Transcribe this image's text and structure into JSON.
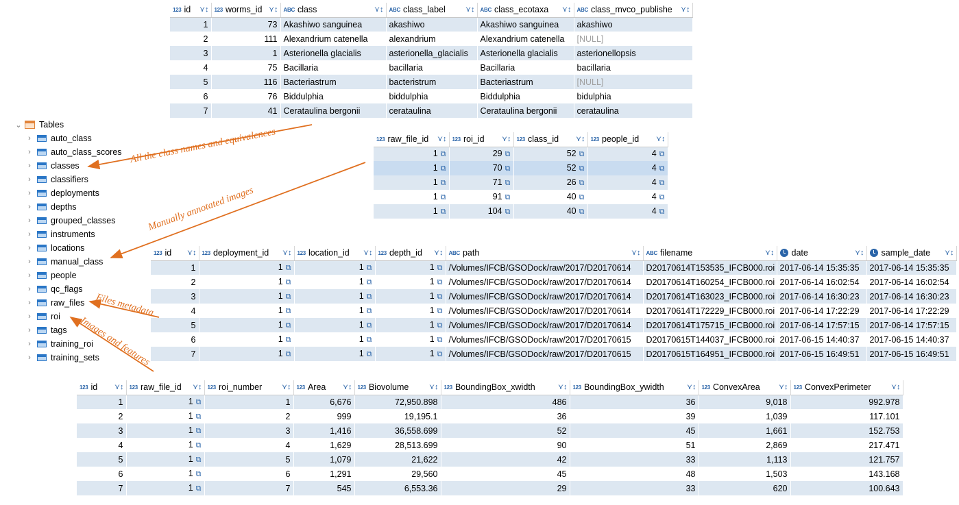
{
  "classes_table": {
    "columns": [
      {
        "type": "123",
        "name": "id"
      },
      {
        "type": "123",
        "name": "worms_id"
      },
      {
        "type": "ABC",
        "name": "class"
      },
      {
        "type": "ABC",
        "name": "class_label"
      },
      {
        "type": "ABC",
        "name": "class_ecotaxa"
      },
      {
        "type": "ABC",
        "name": "class_mvco_publishe"
      }
    ],
    "rows": [
      [
        "1",
        "73",
        "Akashiwo sanguinea",
        "akashiwo",
        "Akashiwo sanguinea",
        "akashiwo"
      ],
      [
        "2",
        "111",
        "Alexandrium catenella",
        "alexandrium",
        "Alexandrium catenella",
        "[NULL]"
      ],
      [
        "3",
        "1",
        "Asterionella glacialis",
        "asterionella_glacialis",
        "Asterionella glacialis",
        "asterionellopsis"
      ],
      [
        "4",
        "75",
        "Bacillaria",
        "bacillaria",
        "Bacillaria",
        "bacillaria"
      ],
      [
        "5",
        "116",
        "Bacteriastrum",
        "bacteristrum",
        "Bacteriastrum",
        "[NULL]"
      ],
      [
        "6",
        "76",
        "Biddulphia",
        "biddulphia",
        "Biddulphia",
        "bidulphia"
      ],
      [
        "7",
        "41",
        "Cerataulina bergonii",
        "cerataulina",
        "Cerataulina bergonii",
        "cerataulina"
      ]
    ]
  },
  "manual_table": {
    "columns": [
      {
        "type": "123",
        "name": "raw_file_id"
      },
      {
        "type": "123",
        "name": "roi_id"
      },
      {
        "type": "123",
        "name": "class_id"
      },
      {
        "type": "123",
        "name": "people_id"
      }
    ],
    "rows": [
      [
        "1",
        "29",
        "52",
        "4"
      ],
      [
        "1",
        "70",
        "52",
        "4"
      ],
      [
        "1",
        "71",
        "26",
        "4"
      ],
      [
        "1",
        "91",
        "40",
        "4"
      ],
      [
        "1",
        "104",
        "40",
        "4"
      ]
    ]
  },
  "raw_files_table": {
    "columns": [
      {
        "type": "123",
        "name": "id"
      },
      {
        "type": "123",
        "name": "deployment_id"
      },
      {
        "type": "123",
        "name": "location_id"
      },
      {
        "type": "123",
        "name": "depth_id"
      },
      {
        "type": "ABC",
        "name": "path"
      },
      {
        "type": "ABC",
        "name": "filename"
      },
      {
        "type": "clock",
        "name": "date"
      },
      {
        "type": "clock",
        "name": "sample_date"
      }
    ],
    "rows": [
      [
        "1",
        "1",
        "1",
        "1",
        "/Volumes/IFCB/GSODock/raw/2017/D20170614",
        "D20170614T153535_IFCB000.roi",
        "2017-06-14 15:35:35",
        "2017-06-14 15:35:35"
      ],
      [
        "2",
        "1",
        "1",
        "1",
        "/Volumes/IFCB/GSODock/raw/2017/D20170614",
        "D20170614T160254_IFCB000.roi",
        "2017-06-14 16:02:54",
        "2017-06-14 16:02:54"
      ],
      [
        "3",
        "1",
        "1",
        "1",
        "/Volumes/IFCB/GSODock/raw/2017/D20170614",
        "D20170614T163023_IFCB000.roi",
        "2017-06-14 16:30:23",
        "2017-06-14 16:30:23"
      ],
      [
        "4",
        "1",
        "1",
        "1",
        "/Volumes/IFCB/GSODock/raw/2017/D20170614",
        "D20170614T172229_IFCB000.roi",
        "2017-06-14 17:22:29",
        "2017-06-14 17:22:29"
      ],
      [
        "5",
        "1",
        "1",
        "1",
        "/Volumes/IFCB/GSODock/raw/2017/D20170614",
        "D20170614T175715_IFCB000.roi",
        "2017-06-14 17:57:15",
        "2017-06-14 17:57:15"
      ],
      [
        "6",
        "1",
        "1",
        "1",
        "/Volumes/IFCB/GSODock/raw/2017/D20170615",
        "D20170615T144037_IFCB000.roi",
        "2017-06-15 14:40:37",
        "2017-06-15 14:40:37"
      ],
      [
        "7",
        "1",
        "1",
        "1",
        "/Volumes/IFCB/GSODock/raw/2017/D20170615",
        "D20170615T164951_IFCB000.roi",
        "2017-06-15 16:49:51",
        "2017-06-15 16:49:51"
      ]
    ]
  },
  "roi_table": {
    "columns": [
      {
        "type": "123",
        "name": "id"
      },
      {
        "type": "123",
        "name": "raw_file_id"
      },
      {
        "type": "123",
        "name": "roi_number"
      },
      {
        "type": "123",
        "name": "Area"
      },
      {
        "type": "123",
        "name": "Biovolume"
      },
      {
        "type": "123",
        "name": "BoundingBox_xwidth"
      },
      {
        "type": "123",
        "name": "BoundingBox_ywidth"
      },
      {
        "type": "123",
        "name": "ConvexArea"
      },
      {
        "type": "123",
        "name": "ConvexPerimeter"
      }
    ],
    "rows": [
      [
        "1",
        "1",
        "1",
        "6,676",
        "72,950.898",
        "486",
        "36",
        "9,018",
        "992.978"
      ],
      [
        "2",
        "1",
        "2",
        "999",
        "19,195.1",
        "36",
        "39",
        "1,039",
        "117.101"
      ],
      [
        "3",
        "1",
        "3",
        "1,416",
        "36,558.699",
        "52",
        "45",
        "1,661",
        "152.753"
      ],
      [
        "4",
        "1",
        "4",
        "1,629",
        "28,513.699",
        "90",
        "51",
        "2,869",
        "217.471"
      ],
      [
        "5",
        "1",
        "5",
        "1,079",
        "21,622",
        "42",
        "33",
        "1,113",
        "121.757"
      ],
      [
        "6",
        "1",
        "6",
        "1,291",
        "29,560",
        "45",
        "48",
        "1,503",
        "143.168"
      ],
      [
        "7",
        "1",
        "7",
        "545",
        "6,553.36",
        "29",
        "33",
        "620",
        "100.643"
      ]
    ]
  },
  "navigator": {
    "root_label": "Tables",
    "items": [
      "auto_class",
      "auto_class_scores",
      "classes",
      "classifiers",
      "deployments",
      "depths",
      "grouped_classes",
      "instruments",
      "locations",
      "manual_class",
      "people",
      "qc_flags",
      "raw_files",
      "roi",
      "tags",
      "training_roi",
      "training_sets"
    ]
  },
  "annotations": {
    "classes_note": "All the class names and equivalences",
    "manual_note": "Manually annotated images",
    "files_note": "Files metadata",
    "images_note": "Images and features"
  },
  "colors": {
    "accent": "#e07020",
    "link": "#2a64a8",
    "row_stripe": "#dde7f1"
  }
}
